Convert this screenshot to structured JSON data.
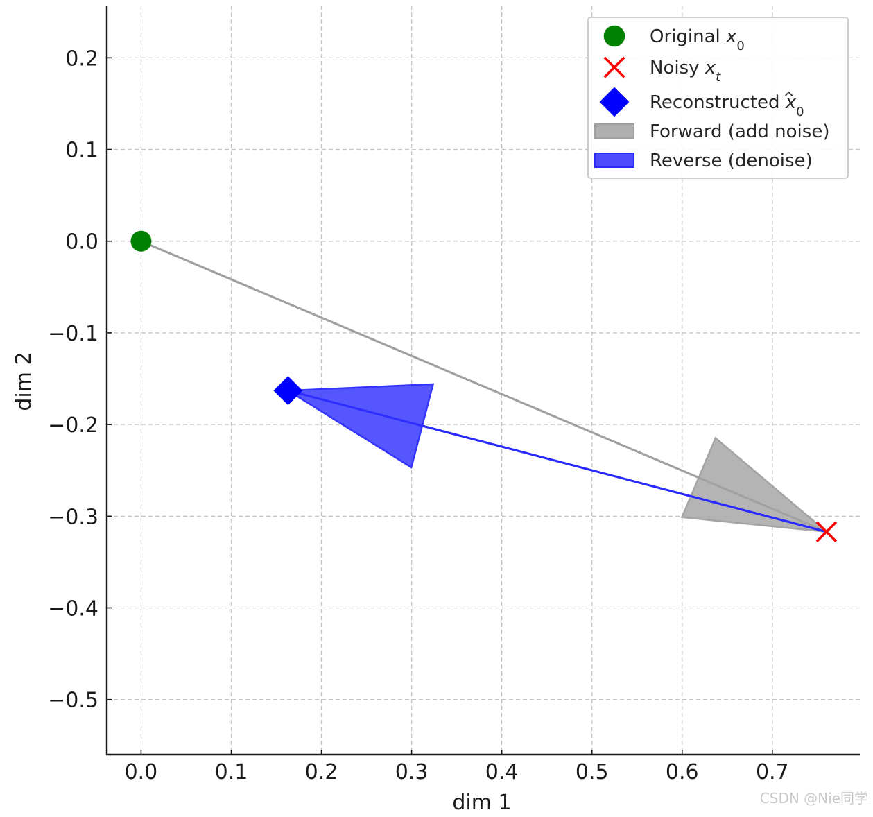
{
  "chart_data": {
    "type": "scatter",
    "xlabel": "dim 1",
    "ylabel": "dim 2",
    "xlim": [
      -0.038,
      0.797
    ],
    "ylim": [
      -0.56,
      0.257
    ],
    "xticks": [
      0.0,
      0.1,
      0.2,
      0.3,
      0.4,
      0.5,
      0.6,
      0.7
    ],
    "xtick_labels": [
      "0.0",
      "0.1",
      "0.2",
      "0.3",
      "0.4",
      "0.5",
      "0.6",
      "0.7"
    ],
    "yticks": [
      0.2,
      0.1,
      0.0,
      -0.1,
      -0.2,
      -0.3,
      -0.4,
      -0.5
    ],
    "ytick_labels": [
      "0.2",
      "0.1",
      "0.0",
      "−0.1",
      "−0.2",
      "−0.3",
      "−0.4",
      "−0.5"
    ],
    "grid": true,
    "legend_position": "top-right",
    "points": [
      {
        "id": "original",
        "x": 0.0,
        "y": 0.0,
        "marker": "circle",
        "color": "#008000"
      },
      {
        "id": "noisy",
        "x": 0.76,
        "y": -0.317,
        "marker": "x",
        "color": "#ff0000"
      },
      {
        "id": "reconstructed",
        "x": 0.163,
        "y": -0.163,
        "marker": "diamond",
        "color": "#0000ff"
      }
    ],
    "arrows": [
      {
        "id": "forward",
        "from": [
          0.0,
          0.0
        ],
        "to": [
          0.76,
          -0.317
        ],
        "color": "#a0a0a0",
        "fill": "#b0b0b0"
      },
      {
        "id": "reverse",
        "from": [
          0.76,
          -0.317
        ],
        "to": [
          0.163,
          -0.163
        ],
        "color": "#2a2aff",
        "fill": "#4d4dff"
      }
    ],
    "legend": [
      {
        "id": "original",
        "label": "Original ",
        "math": "x",
        "sub": "0",
        "hat": false
      },
      {
        "id": "noisy",
        "label": "Noisy ",
        "math": "x",
        "sub": "t",
        "hat": false
      },
      {
        "id": "reconstructed",
        "label": "Reconstructed ",
        "math": "x",
        "sub": "0",
        "hat": true
      },
      {
        "id": "forward",
        "label": "Forward (add noise)"
      },
      {
        "id": "reverse",
        "label": "Reverse (denoise)"
      }
    ]
  },
  "watermark": "CSDN @Nie同学"
}
